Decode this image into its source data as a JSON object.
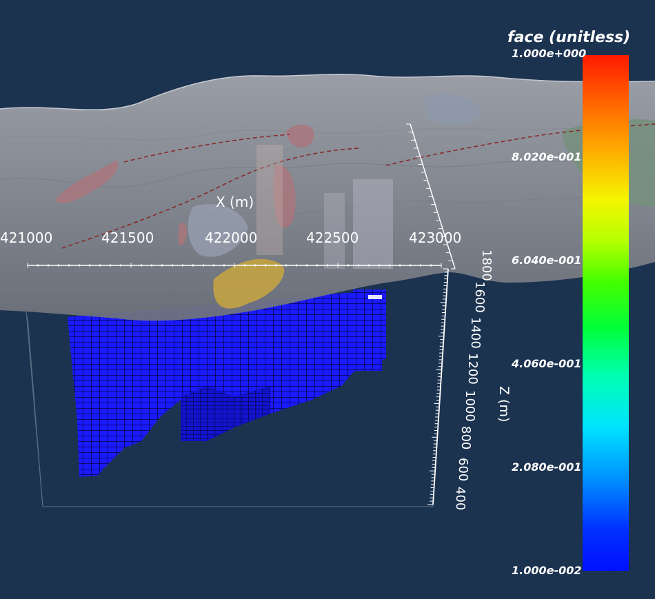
{
  "scene": {
    "x_axis": {
      "title": "X (m)",
      "ticks": [
        "421000",
        "421500",
        "422000",
        "422500",
        "423000"
      ]
    },
    "z_axis": {
      "title": "Z (m)",
      "ticks": [
        "1800",
        "1600",
        "1400",
        "1200",
        "1000",
        "800",
        "600",
        "400"
      ]
    },
    "colorbar": {
      "title": "face (unitless)",
      "ticks": [
        "1.000e+000",
        "8.020e-001",
        "6.040e-001",
        "4.060e-001",
        "2.080e-001",
        "1.000e-002"
      ],
      "range": [
        0.01,
        1.0
      ],
      "colors": [
        "#ff1a00",
        "#f5f500",
        "#44ff00",
        "#00ffb0",
        "#00e4ff",
        "#0010ff"
      ]
    },
    "colors": {
      "background": "#1c3350",
      "terrain": "#8e9199",
      "blocks": "#1a1aff"
    }
  }
}
